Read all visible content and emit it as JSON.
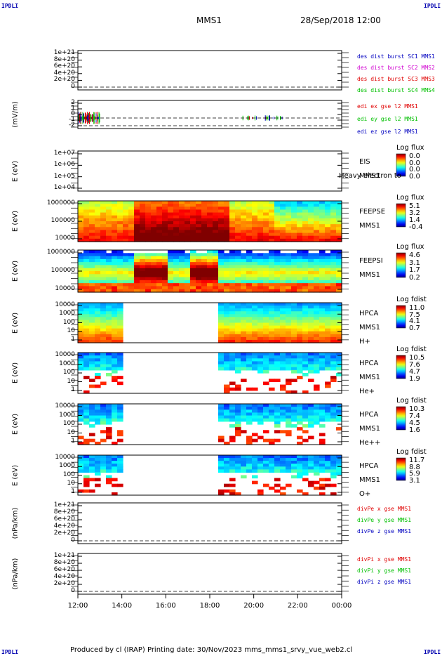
{
  "header": {
    "title": "MMS1",
    "date": "28/Sep/2018 12:00",
    "corner": "IPDLI"
  },
  "footer": {
    "text": "Produced by cl (IRAP)   Printing date: 30/Nov/2023   mms_mms1_srvy_vue_web2.cl"
  },
  "chart_data": [
    {
      "type": "line",
      "ylabel": "",
      "ylim": [
        0,
        1.2e+21
      ],
      "yticks": [
        "1e+21",
        "8e+20",
        "6e+20",
        "4e+20",
        "2e+20",
        "0"
      ],
      "legend": [
        {
          "text": "des dist burst SC1 MMS1",
          "color": "#0000c0"
        },
        {
          "text": "des dist burst SC2 MMS2",
          "color": "#d000d0"
        },
        {
          "text": "des dist burst SC3 MMS3",
          "color": "#e00000"
        },
        {
          "text": "des dist burst SC4 MMS4",
          "color": "#00c000"
        }
      ]
    },
    {
      "type": "line",
      "ylabel": "(mV/m)",
      "ylim": [
        -3,
        3
      ],
      "yticks": [
        "2",
        "1",
        "0",
        "-1",
        "-2"
      ],
      "legend": [
        {
          "text": "edi ex gse l2 MMS1",
          "color": "#e00000"
        },
        {
          "text": "edi ey gse l2 MMS1",
          "color": "#00c000"
        },
        {
          "text": "edi ez gse l2 MMS1",
          "color": "#0000c0"
        }
      ]
    },
    {
      "type": "heatmap",
      "ylabel": "E (eV)",
      "yticks": [
        "1e+07",
        "1e+06",
        "1e+05",
        "1e+04"
      ],
      "instrument": [
        "EIS",
        "MMS1"
      ],
      "overlay": "Heavy electron to",
      "cb_title": "Log flux",
      "cb_labels": [
        "0.0",
        "0.0",
        "0.0",
        "0.0"
      ]
    },
    {
      "type": "heatmap",
      "ylabel": "E (eV)",
      "yticks": [
        "1000000",
        "100000",
        "10000"
      ],
      "instrument": [
        "FEEPSE",
        "MMS1"
      ],
      "cb_title": "Log flux",
      "cb_labels": [
        "5.1",
        "3.2",
        "1.4",
        "-0.4"
      ]
    },
    {
      "type": "heatmap",
      "ylabel": "E (eV)",
      "yticks": [
        "1000000",
        "100000",
        "10000"
      ],
      "instrument": [
        "FEEPSI",
        "MMS1"
      ],
      "cb_title": "Log flux",
      "cb_labels": [
        "4.6",
        "3.1",
        "1.7",
        "0.2"
      ]
    },
    {
      "type": "heatmap",
      "ylabel": "E (eV)",
      "yticks": [
        "10000",
        "1000",
        "100",
        "10",
        "1"
      ],
      "instrument": [
        "HPCA",
        "MMS1",
        "H+"
      ],
      "cb_title": "Log fdist",
      "cb_labels": [
        "11.0",
        "7.5",
        "4.1",
        "0.7"
      ]
    },
    {
      "type": "heatmap",
      "ylabel": "E (eV)",
      "yticks": [
        "10000",
        "1000",
        "100",
        "10",
        "1"
      ],
      "instrument": [
        "HPCA",
        "MMS1",
        "He+"
      ],
      "cb_title": "Log fdist",
      "cb_labels": [
        "10.5",
        "7.6",
        "4.7",
        "1.9"
      ]
    },
    {
      "type": "heatmap",
      "ylabel": "E (eV)",
      "yticks": [
        "10000",
        "1000",
        "100",
        "10",
        "1"
      ],
      "instrument": [
        "HPCA",
        "MMS1",
        "He++"
      ],
      "cb_title": "Log fdist",
      "cb_labels": [
        "10.3",
        "7.4",
        "4.5",
        "1.6"
      ]
    },
    {
      "type": "heatmap",
      "ylabel": "E (eV)",
      "yticks": [
        "10000",
        "1000",
        "100",
        "10",
        "1"
      ],
      "instrument": [
        "HPCA",
        "MMS1",
        "O+"
      ],
      "cb_title": "Log fdist",
      "cb_labels": [
        "11.7",
        "8.8",
        "5.9",
        "3.1"
      ]
    },
    {
      "type": "line",
      "ylabel": "(nPa/km)",
      "ylim": [
        0,
        1.2e+21
      ],
      "yticks": [
        "1e+21",
        "8e+20",
        "6e+20",
        "4e+20",
        "2e+20",
        "0"
      ],
      "legend": [
        {
          "text": "divPe x gse MMS1",
          "color": "#e00000"
        },
        {
          "text": "divPe y gse MMS1",
          "color": "#00c000"
        },
        {
          "text": "divPe z gse MMS1",
          "color": "#0000c0"
        }
      ]
    },
    {
      "type": "line",
      "ylabel": "(nPa/km)",
      "ylim": [
        0,
        1.2e+21
      ],
      "yticks": [
        "1e+21",
        "8e+20",
        "6e+20",
        "4e+20",
        "2e+20",
        "0"
      ],
      "legend": [
        {
          "text": "divPi x gse MMS1",
          "color": "#e00000"
        },
        {
          "text": "divPi y gse MMS1",
          "color": "#00c000"
        },
        {
          "text": "divPi z gse MMS1",
          "color": "#0000c0"
        }
      ]
    }
  ],
  "xaxis": {
    "ticks": [
      "12:00",
      "14:00",
      "16:00",
      "18:00",
      "20:00",
      "22:00",
      "00:00"
    ],
    "range_hours": [
      12,
      24
    ]
  }
}
